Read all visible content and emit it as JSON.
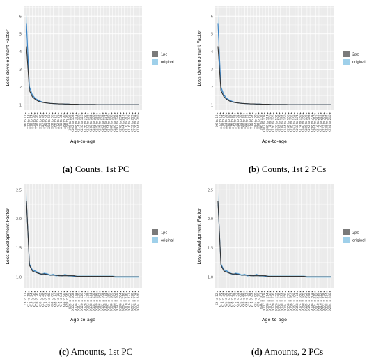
{
  "ylabel": "Loss development Factor",
  "xlabel": "Age-to-age",
  "categories": [
    "X6 to 12 ▸",
    "X12 to 18 ▸",
    "X18 to 24 ▸",
    "X24 to 30 ▸",
    "X30 to 36 ▸",
    "X36 to 42 ▸",
    "X42 to 48 ▸",
    "X48 to 54 ▸",
    "X54 to 60 ▸",
    "X60 to 66 ▸",
    "X66 to 72 ▸",
    "X72 to 78 ▸",
    "X78 to 84 ▸",
    "X84 to 90 ▸",
    "X90 to 96 ▸",
    "X96 to 102 ▸",
    "X102 to 108 ▸",
    "X108 to 114 ▸",
    "X114 to 120 ▸",
    "X120 to 126 ▸",
    "X126 to 132 ▸",
    "X132 to 138 ▸",
    "X138 to 144 ▸",
    "X144 to 150 ▸",
    "X150 to 156 ▸",
    "X156 to 162 ▸",
    "X162 to 168 ▸",
    "X168 to 174 ▸",
    "X174 to 180 ▸",
    "X180 to 186 ▸",
    "X186 to 192 ▸",
    "X192 to 198 ▸",
    "X198 to 204 ▸",
    "X204 to 210 ▸",
    "X210 to 216 ▸",
    "X216 to 222 ▸",
    "X222 to 228 ▸",
    "X228 to 234 ▸",
    "X234 to 240 ▸"
  ],
  "colors": {
    "pc_line": "#333333",
    "pc_band": "#7a7a7a",
    "original_line": "#3a82c4",
    "original_band": "#9fd0ea",
    "panel_bg": "#ebebeb",
    "grid": "#ffffff"
  },
  "chart_data": [
    {
      "type": "line",
      "ylim": [
        0.7,
        6.6
      ],
      "yticks": [
        1,
        2,
        3,
        4,
        5,
        6
      ],
      "legend": [
        "1pc",
        "original"
      ],
      "legend_position": "right",
      "series": [
        {
          "name": "1pc",
          "values": [
            4.3,
            1.8,
            1.45,
            1.3,
            1.2,
            1.15,
            1.12,
            1.1,
            1.08,
            1.07,
            1.06,
            1.05,
            1.05,
            1.04,
            1.04,
            1.03,
            1.03,
            1.03,
            1.02,
            1.02,
            1.02,
            1.02,
            1.02,
            1.02,
            1.01,
            1.01,
            1.01,
            1.01,
            1.01,
            1.01,
            1.01,
            1.01,
            1.01,
            1.01,
            1.01,
            1.01,
            1.01,
            1.01,
            1.01
          ]
        },
        {
          "name": "original",
          "values": [
            5.6,
            2.0,
            1.55,
            1.35,
            1.25,
            1.18,
            1.13,
            1.1,
            1.08,
            1.07,
            1.06,
            1.05,
            1.05,
            1.04,
            1.04,
            1.03,
            1.03,
            1.03,
            1.02,
            1.02,
            1.02,
            1.02,
            1.02,
            1.02,
            1.01,
            1.01,
            1.01,
            1.01,
            1.01,
            1.01,
            1.01,
            1.01,
            1.01,
            1.01,
            1.01,
            1.01,
            1.01,
            1.01,
            1.01
          ]
        }
      ],
      "caption_label": "(a)",
      "caption_text": " Counts, 1st PC"
    },
    {
      "type": "line",
      "ylim": [
        0.7,
        6.6
      ],
      "yticks": [
        1,
        2,
        3,
        4,
        5,
        6
      ],
      "legend": [
        "2pc",
        "original"
      ],
      "legend_position": "right",
      "series": [
        {
          "name": "2pc",
          "values": [
            4.3,
            1.8,
            1.45,
            1.3,
            1.2,
            1.15,
            1.12,
            1.1,
            1.08,
            1.07,
            1.06,
            1.05,
            1.05,
            1.04,
            1.04,
            1.03,
            1.03,
            1.03,
            1.02,
            1.02,
            1.02,
            1.02,
            1.02,
            1.02,
            1.01,
            1.01,
            1.01,
            1.01,
            1.01,
            1.01,
            1.01,
            1.01,
            1.01,
            1.01,
            1.01,
            1.01,
            1.01,
            1.01,
            1.01
          ]
        },
        {
          "name": "original",
          "values": [
            5.6,
            2.0,
            1.55,
            1.35,
            1.25,
            1.18,
            1.13,
            1.1,
            1.08,
            1.07,
            1.06,
            1.05,
            1.05,
            1.04,
            1.04,
            1.03,
            1.03,
            1.03,
            1.02,
            1.02,
            1.02,
            1.02,
            1.02,
            1.02,
            1.01,
            1.01,
            1.01,
            1.01,
            1.01,
            1.01,
            1.01,
            1.01,
            1.01,
            1.01,
            1.01,
            1.01,
            1.01,
            1.01,
            1.01
          ]
        }
      ],
      "caption_label": "(b)",
      "caption_text": " Counts, 1st 2 PCs"
    },
    {
      "type": "line",
      "ylim": [
        0.8,
        2.6
      ],
      "yticks": [
        1.0,
        1.5,
        2.0,
        2.5
      ],
      "legend": [
        "1pc",
        "original"
      ],
      "legend_position": "right",
      "series": [
        {
          "name": "1pc",
          "values": [
            2.3,
            1.2,
            1.1,
            1.08,
            1.06,
            1.05,
            1.05,
            1.04,
            1.03,
            1.03,
            1.03,
            1.02,
            1.02,
            1.02,
            1.02,
            1.02,
            1.02,
            1.01,
            1.01,
            1.01,
            1.01,
            1.01,
            1.01,
            1.01,
            1.01,
            1.01,
            1.01,
            1.01,
            1.01,
            1.01,
            1.0,
            1.0,
            1.0,
            1.0,
            1.0,
            1.0,
            1.0,
            1.0,
            1.0
          ]
        },
        {
          "name": "original",
          "values": [
            2.3,
            1.22,
            1.12,
            1.1,
            1.07,
            1.04,
            1.06,
            1.05,
            1.03,
            1.04,
            1.02,
            1.03,
            1.02,
            1.04,
            1.02,
            1.02,
            1.01,
            1.01,
            1.01,
            1.01,
            1.01,
            1.01,
            1.01,
            1.01,
            1.01,
            1.01,
            1.01,
            1.01,
            1.01,
            1.01,
            1.0,
            1.0,
            1.0,
            1.0,
            1.0,
            1.0,
            1.0,
            1.0,
            1.0
          ]
        }
      ],
      "caption_label": "(c)",
      "caption_text": " Amounts, 1st PC"
    },
    {
      "type": "line",
      "ylim": [
        0.8,
        2.6
      ],
      "yticks": [
        1.0,
        1.5,
        2.0,
        2.5
      ],
      "legend": [
        "2pc",
        "original"
      ],
      "legend_position": "right",
      "series": [
        {
          "name": "2pc",
          "values": [
            2.3,
            1.2,
            1.1,
            1.08,
            1.06,
            1.05,
            1.05,
            1.04,
            1.03,
            1.03,
            1.03,
            1.02,
            1.02,
            1.02,
            1.02,
            1.02,
            1.02,
            1.01,
            1.01,
            1.01,
            1.01,
            1.01,
            1.01,
            1.01,
            1.01,
            1.01,
            1.01,
            1.01,
            1.01,
            1.01,
            1.0,
            1.0,
            1.0,
            1.0,
            1.0,
            1.0,
            1.0,
            1.0,
            1.0
          ]
        },
        {
          "name": "original",
          "values": [
            2.3,
            1.22,
            1.12,
            1.1,
            1.07,
            1.04,
            1.06,
            1.05,
            1.03,
            1.04,
            1.02,
            1.03,
            1.02,
            1.04,
            1.02,
            1.02,
            1.01,
            1.01,
            1.01,
            1.01,
            1.01,
            1.01,
            1.01,
            1.01,
            1.01,
            1.01,
            1.01,
            1.01,
            1.01,
            1.01,
            1.0,
            1.0,
            1.0,
            1.0,
            1.0,
            1.0,
            1.0,
            1.0,
            1.0
          ]
        }
      ],
      "caption_label": "(d)",
      "caption_text": " Amounts, 2 PCs"
    }
  ]
}
